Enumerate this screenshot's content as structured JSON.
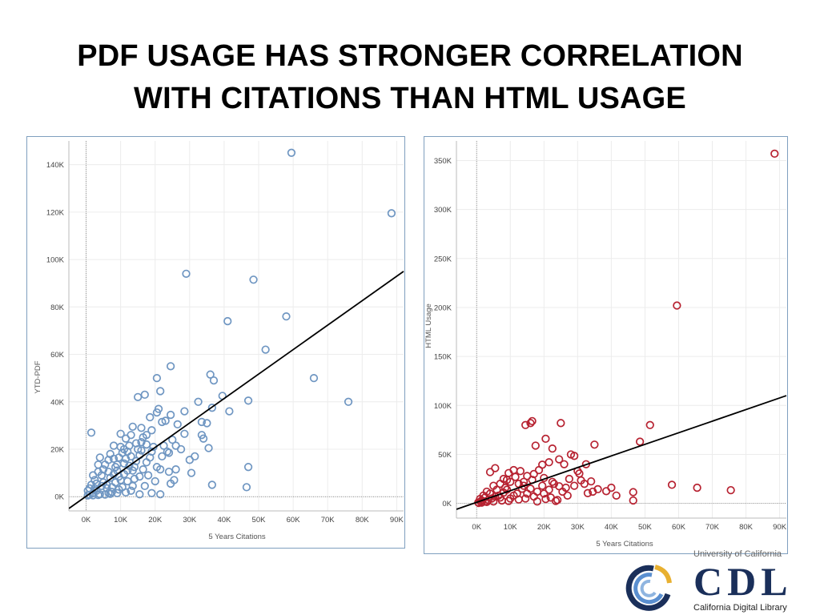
{
  "slide": {
    "title_line1": "PDF USAGE HAS STRONGER CORRELATION",
    "title_line2": "WITH CITATIONS THAN HTML USAGE"
  },
  "logo": {
    "top_text": "University of California",
    "mark_text": "CDL",
    "bottom_text": "California Digital Library",
    "colors": {
      "navy": "#1a2f5a",
      "gold": "#e8b030",
      "blue": "#5a8fd0"
    }
  },
  "chart_data": [
    {
      "type": "scatter",
      "title": "",
      "xlabel": "5 Years Citations",
      "ylabel": "YTD-PDF",
      "xlim": [
        -5000,
        92000
      ],
      "ylim": [
        -6000,
        150000
      ],
      "x_ticks": [
        {
          "value": 0,
          "label": "0K"
        },
        {
          "value": 10000,
          "label": "10K"
        },
        {
          "value": 20000,
          "label": "20K"
        },
        {
          "value": 30000,
          "label": "30K"
        },
        {
          "value": 40000,
          "label": "40K"
        },
        {
          "value": 50000,
          "label": "50K"
        },
        {
          "value": 60000,
          "label": "60K"
        },
        {
          "value": 70000,
          "label": "70K"
        },
        {
          "value": 80000,
          "label": "80K"
        },
        {
          "value": 90000,
          "label": "90K"
        }
      ],
      "y_ticks": [
        {
          "value": 0,
          "label": "0K"
        },
        {
          "value": 20000,
          "label": "20K"
        },
        {
          "value": 40000,
          "label": "40K"
        },
        {
          "value": 60000,
          "label": "60K"
        },
        {
          "value": 80000,
          "label": "80K"
        },
        {
          "value": 100000,
          "label": "100K"
        },
        {
          "value": 120000,
          "label": "120K"
        },
        {
          "value": 140000,
          "label": "140K"
        }
      ],
      "grid": true,
      "marker_color": "#6f96c2",
      "trend_line": {
        "x": [
          -5000,
          92000
        ],
        "y": [
          -5000,
          95000
        ]
      },
      "points": [
        [
          59500,
          145000
        ],
        [
          88500,
          119500
        ],
        [
          29000,
          94000
        ],
        [
          48500,
          91500
        ],
        [
          41000,
          74000
        ],
        [
          58000,
          76000
        ],
        [
          52000,
          62000
        ],
        [
          66000,
          50000
        ],
        [
          76000,
          40000
        ],
        [
          47000,
          40500
        ],
        [
          41500,
          36000
        ],
        [
          47000,
          12500
        ],
        [
          46500,
          4000
        ],
        [
          36500,
          5000
        ],
        [
          24500,
          55000
        ],
        [
          36000,
          51500
        ],
        [
          37000,
          49000
        ],
        [
          20500,
          50000
        ],
        [
          15000,
          42000
        ],
        [
          17000,
          43000
        ],
        [
          21500,
          44500
        ],
        [
          39500,
          42500
        ],
        [
          32500,
          40000
        ],
        [
          36500,
          37500
        ],
        [
          28500,
          36000
        ],
        [
          21000,
          37000
        ],
        [
          20500,
          35500
        ],
        [
          24500,
          34500
        ],
        [
          18500,
          33500
        ],
        [
          13500,
          29500
        ],
        [
          1500,
          27000
        ],
        [
          23000,
          32000
        ],
        [
          22000,
          31500
        ],
        [
          33500,
          31500
        ],
        [
          35000,
          31000
        ],
        [
          28500,
          26500
        ],
        [
          33500,
          26000
        ],
        [
          34000,
          24500
        ],
        [
          26000,
          21500
        ],
        [
          35500,
          20500
        ],
        [
          27500,
          20000
        ],
        [
          31500,
          17000
        ],
        [
          24000,
          18500
        ],
        [
          22000,
          17000
        ],
        [
          30000,
          15500
        ],
        [
          30500,
          10000
        ],
        [
          26000,
          11500
        ],
        [
          24000,
          10500
        ],
        [
          21500,
          11500
        ],
        [
          25500,
          7000
        ],
        [
          24500,
          5500
        ],
        [
          21500,
          1000
        ],
        [
          19000,
          1500
        ],
        [
          15500,
          1000
        ],
        [
          13000,
          2500
        ],
        [
          19000,
          28000
        ],
        [
          14500,
          22500
        ],
        [
          9000,
          13500
        ],
        [
          12000,
          19000
        ],
        [
          7000,
          18000
        ],
        [
          10000,
          21000
        ],
        [
          11500,
          16000
        ],
        [
          16500,
          25000
        ],
        [
          6500,
          10500
        ],
        [
          8500,
          6000
        ],
        [
          4500,
          9000
        ],
        [
          3000,
          5500
        ],
        [
          11000,
          9500
        ],
        [
          13500,
          11000
        ],
        [
          17500,
          14500
        ],
        [
          15500,
          17500
        ],
        [
          9500,
          8500
        ],
        [
          6000,
          3500
        ],
        [
          2000,
          1500
        ],
        [
          3500,
          10500
        ],
        [
          5500,
          13500
        ],
        [
          8000,
          16000
        ],
        [
          12500,
          13000
        ],
        [
          18500,
          16500
        ],
        [
          16500,
          11500
        ],
        [
          14000,
          7500
        ],
        [
          10500,
          4000
        ],
        [
          7500,
          2000
        ],
        [
          4000,
          1000
        ],
        [
          1000,
          3500
        ],
        [
          2500,
          7000
        ],
        [
          5000,
          6000
        ],
        [
          7000,
          8000
        ],
        [
          9000,
          11000
        ],
        [
          11000,
          14000
        ],
        [
          13000,
          17000
        ],
        [
          15000,
          20000
        ],
        [
          16000,
          23000
        ],
        [
          17500,
          26000
        ],
        [
          14500,
          15000
        ],
        [
          12000,
          6500
        ],
        [
          9500,
          3000
        ],
        [
          6500,
          1500
        ],
        [
          3000,
          2500
        ],
        [
          1500,
          5000
        ],
        [
          4500,
          4500
        ],
        [
          8500,
          12500
        ],
        [
          10500,
          18500
        ],
        [
          12500,
          21500
        ],
        [
          16000,
          19500
        ],
        [
          19500,
          21000
        ],
        [
          18000,
          9000
        ],
        [
          20500,
          12500
        ],
        [
          22500,
          21500
        ],
        [
          20000,
          6500
        ],
        [
          17000,
          4500
        ],
        [
          500,
          500
        ],
        [
          1000,
          800
        ],
        [
          2000,
          600
        ],
        [
          3500,
          700
        ],
        [
          5500,
          900
        ],
        [
          7000,
          1200
        ],
        [
          9000,
          1500
        ],
        [
          11500,
          1800
        ],
        [
          500,
          2500
        ],
        [
          2500,
          3500
        ],
        [
          6000,
          5000
        ],
        [
          7500,
          4000
        ],
        [
          13500,
          4500
        ],
        [
          15500,
          8500
        ],
        [
          12000,
          11000
        ],
        [
          10000,
          7000
        ],
        [
          8000,
          9500
        ],
        [
          5000,
          11500
        ],
        [
          3500,
          13500
        ],
        [
          6500,
          15500
        ],
        [
          9500,
          16500
        ],
        [
          11000,
          20000
        ],
        [
          14000,
          12500
        ],
        [
          4000,
          16500
        ],
        [
          2000,
          9000
        ],
        [
          19000,
          19000
        ],
        [
          17500,
          22000
        ],
        [
          23500,
          19000
        ],
        [
          25000,
          24000
        ],
        [
          26500,
          30500
        ],
        [
          11500,
          24500
        ],
        [
          13000,
          26000
        ],
        [
          16000,
          29000
        ],
        [
          10000,
          26500
        ],
        [
          8000,
          21500
        ]
      ]
    },
    {
      "type": "scatter",
      "title": "",
      "xlabel": "5 Years Citations",
      "ylabel": "HTML Usage",
      "xlim": [
        -6000,
        92000
      ],
      "ylim": [
        -15000,
        370000
      ],
      "x_ticks": [
        {
          "value": 0,
          "label": "0K"
        },
        {
          "value": 10000,
          "label": "10K"
        },
        {
          "value": 20000,
          "label": "20K"
        },
        {
          "value": 30000,
          "label": "30K"
        },
        {
          "value": 40000,
          "label": "40K"
        },
        {
          "value": 50000,
          "label": "50K"
        },
        {
          "value": 60000,
          "label": "60K"
        },
        {
          "value": 70000,
          "label": "70K"
        },
        {
          "value": 80000,
          "label": "80K"
        },
        {
          "value": 90000,
          "label": "90K"
        }
      ],
      "y_ticks": [
        {
          "value": 0,
          "label": "0K"
        },
        {
          "value": 50000,
          "label": "50K"
        },
        {
          "value": 100000,
          "label": "100K"
        },
        {
          "value": 150000,
          "label": "150K"
        },
        {
          "value": 200000,
          "label": "200K"
        },
        {
          "value": 250000,
          "label": "250K"
        },
        {
          "value": 300000,
          "label": "300K"
        },
        {
          "value": 350000,
          "label": "350K"
        }
      ],
      "grid": true,
      "marker_color": "#b72231",
      "trend_line": {
        "x": [
          -6000,
          92000
        ],
        "y": [
          -6000,
          110000
        ]
      },
      "points": [
        [
          88500,
          357000
        ],
        [
          59500,
          202000
        ],
        [
          51500,
          80000
        ],
        [
          48500,
          63000
        ],
        [
          58000,
          19000
        ],
        [
          65500,
          16000
        ],
        [
          75500,
          13500
        ],
        [
          46500,
          11500
        ],
        [
          46500,
          3000
        ],
        [
          41500,
          8000
        ],
        [
          38500,
          12500
        ],
        [
          36000,
          14500
        ],
        [
          40000,
          16000
        ],
        [
          35000,
          60000
        ],
        [
          25000,
          82000
        ],
        [
          16500,
          84000
        ],
        [
          14500,
          80000
        ],
        [
          16000,
          82000
        ],
        [
          20500,
          66000
        ],
        [
          17500,
          59000
        ],
        [
          22500,
          56000
        ],
        [
          28000,
          50000
        ],
        [
          29000,
          48500
        ],
        [
          32500,
          40000
        ],
        [
          30500,
          30500
        ],
        [
          27500,
          25000
        ],
        [
          31000,
          23500
        ],
        [
          34000,
          22500
        ],
        [
          33000,
          10500
        ],
        [
          34500,
          12000
        ],
        [
          29000,
          18000
        ],
        [
          24500,
          17500
        ],
        [
          22500,
          22000
        ],
        [
          26000,
          40000
        ],
        [
          24500,
          45000
        ],
        [
          21500,
          42000
        ],
        [
          19500,
          39500
        ],
        [
          18500,
          34000
        ],
        [
          17000,
          30000
        ],
        [
          20000,
          26000
        ],
        [
          15000,
          28000
        ],
        [
          13000,
          33000
        ],
        [
          11000,
          34000
        ],
        [
          9500,
          31000
        ],
        [
          5500,
          36000
        ],
        [
          4000,
          32000
        ],
        [
          8000,
          25000
        ],
        [
          10000,
          22000
        ],
        [
          12500,
          20000
        ],
        [
          14000,
          18000
        ],
        [
          16000,
          15000
        ],
        [
          18000,
          12000
        ],
        [
          20000,
          10000
        ],
        [
          22000,
          6000
        ],
        [
          24000,
          3500
        ],
        [
          18000,
          2000
        ],
        [
          14500,
          5000
        ],
        [
          11000,
          8000
        ],
        [
          8000,
          11000
        ],
        [
          6000,
          14000
        ],
        [
          4000,
          10000
        ],
        [
          2500,
          6000
        ],
        [
          1500,
          3000
        ],
        [
          500,
          1000
        ],
        [
          1000,
          4500
        ],
        [
          3000,
          12000
        ],
        [
          5000,
          18000
        ],
        [
          7000,
          20000
        ],
        [
          9000,
          24000
        ],
        [
          11500,
          27000
        ],
        [
          13500,
          15000
        ],
        [
          12000,
          10000
        ],
        [
          10000,
          5000
        ],
        [
          7500,
          3000
        ],
        [
          5000,
          2000
        ],
        [
          3000,
          1500
        ],
        [
          1500,
          800
        ],
        [
          2000,
          8000
        ],
        [
          6500,
          8000
        ],
        [
          8500,
          16000
        ],
        [
          15000,
          10000
        ],
        [
          17000,
          7000
        ],
        [
          19500,
          18000
        ],
        [
          21500,
          14000
        ],
        [
          23000,
          20000
        ],
        [
          25500,
          12000
        ],
        [
          27000,
          8000
        ],
        [
          16500,
          24000
        ],
        [
          14000,
          22000
        ],
        [
          9000,
          14000
        ],
        [
          7000,
          6000
        ],
        [
          4500,
          5000
        ],
        [
          2500,
          2000
        ],
        [
          600,
          500
        ],
        [
          1200,
          1800
        ],
        [
          3500,
          3500
        ],
        [
          5500,
          7000
        ],
        [
          9500,
          2500
        ],
        [
          12500,
          4000
        ],
        [
          20500,
          4500
        ],
        [
          23500,
          2500
        ],
        [
          26500,
          16000
        ],
        [
          30000,
          33000
        ],
        [
          32000,
          20000
        ]
      ]
    }
  ]
}
